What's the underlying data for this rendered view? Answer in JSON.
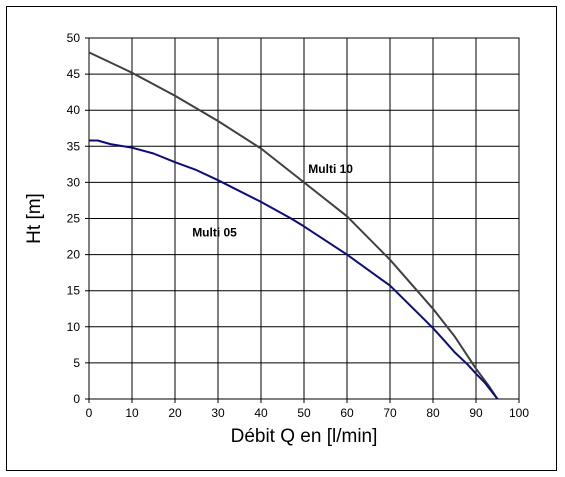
{
  "chart_data": {
    "type": "line",
    "title": "",
    "xlabel": "Débit Q en [l/min]",
    "ylabel": "Ht  [m]",
    "xlim": [
      0,
      100
    ],
    "ylim": [
      0,
      50
    ],
    "x_ticks": [
      0,
      10,
      20,
      30,
      40,
      50,
      60,
      70,
      80,
      90,
      100
    ],
    "y_ticks": [
      0,
      5,
      10,
      15,
      20,
      25,
      30,
      35,
      40,
      45,
      50
    ],
    "grid": true,
    "legend": "none",
    "series": [
      {
        "name": "Multi 10",
        "color": "#404040",
        "x": [
          0,
          10,
          20,
          30,
          40,
          50,
          60,
          70,
          80,
          85,
          90,
          93,
          95
        ],
        "y": [
          48,
          45.2,
          42,
          38.5,
          34.7,
          30,
          25.3,
          19.3,
          12.5,
          8.7,
          4.2,
          1.8,
          0
        ]
      },
      {
        "name": "Multi 05",
        "color": "#0d0d7a",
        "x": [
          0,
          2,
          5,
          10,
          15,
          20,
          25,
          30,
          40,
          47,
          50,
          60,
          70,
          78,
          80,
          82,
          85,
          88,
          90,
          92,
          95
        ],
        "y": [
          35.8,
          35.8,
          35.3,
          34.8,
          34,
          32.8,
          31.7,
          30.3,
          27.3,
          25,
          23.9,
          20,
          15.7,
          11,
          9.8,
          8.5,
          6.5,
          4.8,
          3.5,
          2.3,
          0
        ]
      }
    ]
  }
}
